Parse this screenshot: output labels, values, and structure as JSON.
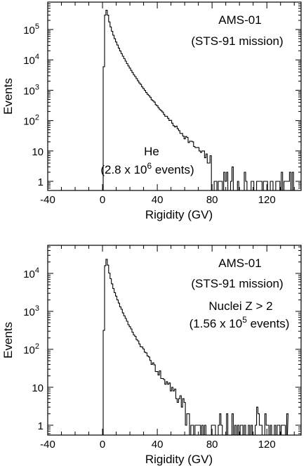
{
  "chart_data": [
    {
      "type": "histogram",
      "id": "top",
      "xlabel": "Rigidity (GV)",
      "ylabel": "Events",
      "xlim": [
        -40,
        145
      ],
      "ylim_log": [
        0.5,
        800000
      ],
      "x_ticks": [
        "-40",
        "0",
        "40",
        "80",
        "120"
      ],
      "x_tick_values": [
        -40,
        0,
        40,
        80,
        120
      ],
      "y_ticks": [
        {
          "v": 1,
          "base": "1",
          "exp": ""
        },
        {
          "v": 10,
          "base": "10",
          "exp": ""
        },
        {
          "v": 100,
          "base": "10",
          "exp": "2"
        },
        {
          "v": 1000,
          "base": "10",
          "exp": "3"
        },
        {
          "v": 10000,
          "base": "10",
          "exp": "4"
        },
        {
          "v": 100000,
          "base": "10",
          "exp": "5"
        }
      ],
      "annotations": {
        "experiment": "AMS-01",
        "mission": "(STS-91 mission)",
        "species": "He",
        "count_prefix": "(2.8 x 10",
        "count_exp": "6",
        "count_suffix": " events)"
      },
      "spectrum": {
        "peak": 500000,
        "peak_at": 3,
        "cutoff": 0.5,
        "end_stat": 93,
        "end": 140
      }
    },
    {
      "type": "histogram",
      "id": "bottom",
      "xlabel": "Rigidity (GV)",
      "ylabel": "Events",
      "xlim": [
        -40,
        145
      ],
      "ylim_log": [
        0.55,
        55000
      ],
      "x_ticks": [
        "-40",
        "0",
        "40",
        "80",
        "120"
      ],
      "x_tick_values": [
        -40,
        0,
        40,
        80,
        120
      ],
      "y_ticks": [
        {
          "v": 1,
          "base": "1",
          "exp": ""
        },
        {
          "v": 10,
          "base": "10",
          "exp": ""
        },
        {
          "v": 100,
          "base": "10",
          "exp": "2"
        },
        {
          "v": 1000,
          "base": "10",
          "exp": "3"
        },
        {
          "v": 10000,
          "base": "10",
          "exp": "4"
        }
      ],
      "annotations": {
        "experiment": "AMS-01",
        "mission": "(STS-91 mission)",
        "species": "Nuclei Z > 2",
        "count_prefix": "(1.56 x 10",
        "count_exp": "5",
        "count_suffix": " events)"
      },
      "spectrum": {
        "peak": 27000,
        "peak_at": 3,
        "cutoff": 0.5,
        "end_stat": 70,
        "end": 135
      }
    }
  ]
}
